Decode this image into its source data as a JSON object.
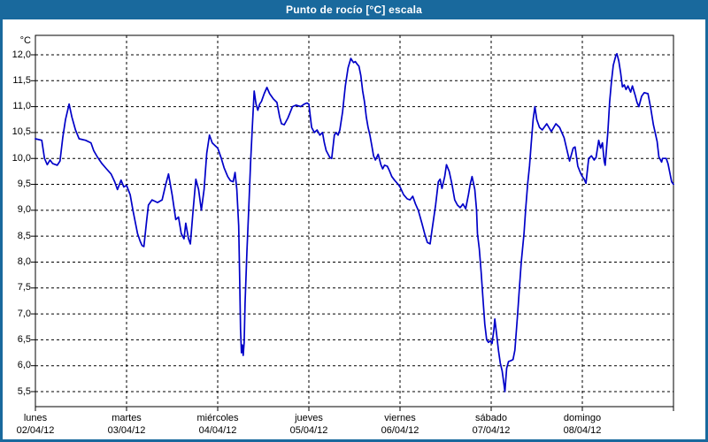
{
  "window": {
    "title": "Punto de rocío [°C] escala"
  },
  "chart_data": {
    "type": "line",
    "title": "Punto de rocío [°C] escala",
    "legend": "none",
    "grid": {
      "horizontal": "dashed",
      "vertical": "dashed"
    },
    "colors": {
      "frame_blue": "#19699d",
      "line": "#0000c8",
      "grid": "#000000",
      "plot_border": "#000000",
      "background": "#ffffff"
    },
    "y_axis": {
      "unit_label": "°C",
      "min": 5.5,
      "max": 12.0,
      "tick_step": 0.5,
      "tick_labels": [
        "12,0",
        "11,5",
        "11,0",
        "10,5",
        "10,0",
        "9,5",
        "9,0",
        "8,5",
        "8,0",
        "7,5",
        "7,0",
        "6,5",
        "6,0",
        "5,5"
      ]
    },
    "x_axis": {
      "unit": "days",
      "days": [
        {
          "name": "lunes",
          "date": "02/04/12"
        },
        {
          "name": "martes",
          "date": "03/04/12"
        },
        {
          "name": "miércoles",
          "date": "04/04/12"
        },
        {
          "name": "jueves",
          "date": "05/04/12"
        },
        {
          "name": "viernes",
          "date": "06/04/12"
        },
        {
          "name": "sábado",
          "date": "07/04/12"
        },
        {
          "name": "domingo",
          "date": "08/04/12"
        }
      ]
    },
    "series": [
      {
        "name": "Punto de rocío [°C]",
        "color": "#0000c8",
        "points": [
          [
            0,
            10.38
          ],
          [
            0.07,
            10.35
          ],
          [
            0.1,
            10.0
          ],
          [
            0.13,
            9.88
          ],
          [
            0.16,
            9.97
          ],
          [
            0.19,
            9.9
          ],
          [
            0.24,
            9.87
          ],
          [
            0.27,
            9.95
          ],
          [
            0.3,
            10.4
          ],
          [
            0.33,
            10.75
          ],
          [
            0.37,
            11.05
          ],
          [
            0.4,
            10.8
          ],
          [
            0.44,
            10.55
          ],
          [
            0.48,
            10.38
          ],
          [
            0.55,
            10.35
          ],
          [
            0.61,
            10.3
          ],
          [
            0.64,
            10.15
          ],
          [
            0.68,
            10.03
          ],
          [
            0.73,
            9.9
          ],
          [
            0.78,
            9.8
          ],
          [
            0.83,
            9.7
          ],
          [
            0.87,
            9.55
          ],
          [
            0.9,
            9.4
          ],
          [
            0.94,
            9.58
          ],
          [
            0.97,
            9.45
          ],
          [
            1.0,
            9.48
          ],
          [
            1.04,
            9.3
          ],
          [
            1.07,
            9.0
          ],
          [
            1.12,
            8.55
          ],
          [
            1.15,
            8.4
          ],
          [
            1.17,
            8.32
          ],
          [
            1.19,
            8.3
          ],
          [
            1.22,
            8.8
          ],
          [
            1.24,
            9.1
          ],
          [
            1.28,
            9.2
          ],
          [
            1.34,
            9.15
          ],
          [
            1.39,
            9.2
          ],
          [
            1.43,
            9.5
          ],
          [
            1.46,
            9.7
          ],
          [
            1.5,
            9.3
          ],
          [
            1.54,
            8.82
          ],
          [
            1.57,
            8.87
          ],
          [
            1.6,
            8.55
          ],
          [
            1.63,
            8.45
          ],
          [
            1.65,
            8.75
          ],
          [
            1.68,
            8.45
          ],
          [
            1.7,
            8.35
          ],
          [
            1.73,
            9.0
          ],
          [
            1.76,
            9.6
          ],
          [
            1.79,
            9.4
          ],
          [
            1.82,
            9.0
          ],
          [
            1.85,
            9.4
          ],
          [
            1.88,
            10.1
          ],
          [
            1.91,
            10.45
          ],
          [
            1.94,
            10.3
          ],
          [
            1.97,
            10.25
          ],
          [
            2.0,
            10.2
          ],
          [
            2.04,
            10.0
          ],
          [
            2.07,
            9.82
          ],
          [
            2.11,
            9.65
          ],
          [
            2.14,
            9.57
          ],
          [
            2.17,
            9.55
          ],
          [
            2.19,
            9.73
          ],
          [
            2.21,
            9.4
          ],
          [
            2.23,
            8.7
          ],
          [
            2.24,
            7.8
          ],
          [
            2.25,
            6.7
          ],
          [
            2.26,
            6.25
          ],
          [
            2.27,
            6.4
          ],
          [
            2.28,
            6.2
          ],
          [
            2.29,
            6.45
          ],
          [
            2.3,
            7.2
          ],
          [
            2.32,
            8.2
          ],
          [
            2.34,
            9.0
          ],
          [
            2.36,
            9.9
          ],
          [
            2.38,
            10.6
          ],
          [
            2.4,
            11.3
          ],
          [
            2.42,
            11.05
          ],
          [
            2.44,
            10.93
          ],
          [
            2.46,
            11.05
          ],
          [
            2.48,
            11.1
          ],
          [
            2.51,
            11.25
          ],
          [
            2.54,
            11.37
          ],
          [
            2.57,
            11.25
          ],
          [
            2.61,
            11.15
          ],
          [
            2.65,
            11.08
          ],
          [
            2.68,
            10.8
          ],
          [
            2.7,
            10.67
          ],
          [
            2.73,
            10.65
          ],
          [
            2.77,
            10.78
          ],
          [
            2.82,
            11.0
          ],
          [
            2.86,
            11.03
          ],
          [
            2.91,
            11.0
          ],
          [
            2.95,
            11.05
          ],
          [
            2.98,
            11.07
          ],
          [
            3.0,
            11.05
          ],
          [
            3.03,
            10.6
          ],
          [
            3.06,
            10.5
          ],
          [
            3.09,
            10.55
          ],
          [
            3.12,
            10.45
          ],
          [
            3.15,
            10.5
          ],
          [
            3.17,
            10.3
          ],
          [
            3.19,
            10.15
          ],
          [
            3.23,
            10.02
          ],
          [
            3.25,
            10.0
          ],
          [
            3.28,
            10.45
          ],
          [
            3.3,
            10.5
          ],
          [
            3.32,
            10.45
          ],
          [
            3.34,
            10.55
          ],
          [
            3.37,
            10.9
          ],
          [
            3.4,
            11.4
          ],
          [
            3.43,
            11.75
          ],
          [
            3.46,
            11.93
          ],
          [
            3.49,
            11.85
          ],
          [
            3.51,
            11.87
          ],
          [
            3.53,
            11.82
          ],
          [
            3.55,
            11.78
          ],
          [
            3.57,
            11.6
          ],
          [
            3.59,
            11.3
          ],
          [
            3.61,
            11.1
          ],
          [
            3.63,
            10.8
          ],
          [
            3.65,
            10.6
          ],
          [
            3.67,
            10.45
          ],
          [
            3.69,
            10.25
          ],
          [
            3.71,
            10.05
          ],
          [
            3.73,
            9.97
          ],
          [
            3.76,
            10.08
          ],
          [
            3.79,
            9.88
          ],
          [
            3.81,
            9.8
          ],
          [
            3.83,
            9.87
          ],
          [
            3.86,
            9.85
          ],
          [
            3.88,
            9.78
          ],
          [
            3.91,
            9.65
          ],
          [
            3.94,
            9.58
          ],
          [
            3.98,
            9.5
          ],
          [
            4.0,
            9.45
          ],
          [
            4.04,
            9.3
          ],
          [
            4.08,
            9.22
          ],
          [
            4.11,
            9.2
          ],
          [
            4.14,
            9.27
          ],
          [
            4.17,
            9.12
          ],
          [
            4.2,
            9.0
          ],
          [
            4.24,
            8.75
          ],
          [
            4.27,
            8.55
          ],
          [
            4.3,
            8.38
          ],
          [
            4.33,
            8.35
          ],
          [
            4.35,
            8.6
          ],
          [
            4.39,
            9.1
          ],
          [
            4.42,
            9.55
          ],
          [
            4.44,
            9.6
          ],
          [
            4.46,
            9.42
          ],
          [
            4.49,
            9.65
          ],
          [
            4.51,
            9.88
          ],
          [
            4.54,
            9.75
          ],
          [
            4.57,
            9.5
          ],
          [
            4.6,
            9.2
          ],
          [
            4.63,
            9.1
          ],
          [
            4.66,
            9.05
          ],
          [
            4.69,
            9.12
          ],
          [
            4.72,
            9.03
          ],
          [
            4.75,
            9.3
          ],
          [
            4.77,
            9.5
          ],
          [
            4.79,
            9.65
          ],
          [
            4.82,
            9.4
          ],
          [
            4.84,
            9.0
          ],
          [
            4.85,
            8.55
          ],
          [
            4.87,
            8.25
          ],
          [
            4.89,
            7.8
          ],
          [
            4.91,
            7.3
          ],
          [
            4.93,
            6.8
          ],
          [
            4.95,
            6.5
          ],
          [
            4.97,
            6.45
          ],
          [
            4.99,
            6.48
          ],
          [
            5.01,
            6.43
          ],
          [
            5.03,
            6.7
          ],
          [
            5.04,
            6.9
          ],
          [
            5.06,
            6.6
          ],
          [
            5.08,
            6.3
          ],
          [
            5.1,
            6.05
          ],
          [
            5.12,
            5.9
          ],
          [
            5.14,
            5.65
          ],
          [
            5.15,
            5.5
          ],
          [
            5.17,
            5.95
          ],
          [
            5.19,
            6.08
          ],
          [
            5.22,
            6.1
          ],
          [
            5.24,
            6.12
          ],
          [
            5.26,
            6.3
          ],
          [
            5.29,
            7.0
          ],
          [
            5.31,
            7.5
          ],
          [
            5.33,
            8.0
          ],
          [
            5.36,
            8.55
          ],
          [
            5.38,
            9.05
          ],
          [
            5.4,
            9.5
          ],
          [
            5.42,
            9.85
          ],
          [
            5.44,
            10.3
          ],
          [
            5.46,
            10.75
          ],
          [
            5.48,
            11.0
          ],
          [
            5.5,
            10.75
          ],
          [
            5.53,
            10.6
          ],
          [
            5.56,
            10.55
          ],
          [
            5.61,
            10.67
          ],
          [
            5.66,
            10.52
          ],
          [
            5.71,
            10.67
          ],
          [
            5.75,
            10.6
          ],
          [
            5.8,
            10.4
          ],
          [
            5.84,
            10.1
          ],
          [
            5.86,
            9.95
          ],
          [
            5.9,
            10.2
          ],
          [
            5.92,
            10.22
          ],
          [
            5.95,
            9.85
          ],
          [
            5.98,
            9.72
          ],
          [
            6.0,
            9.65
          ],
          [
            6.02,
            9.6
          ],
          [
            6.04,
            9.52
          ],
          [
            6.07,
            10.0
          ],
          [
            6.1,
            10.05
          ],
          [
            6.13,
            9.97
          ],
          [
            6.15,
            10.02
          ],
          [
            6.18,
            10.35
          ],
          [
            6.2,
            10.2
          ],
          [
            6.22,
            10.3
          ],
          [
            6.24,
            9.95
          ],
          [
            6.25,
            9.87
          ],
          [
            6.28,
            10.5
          ],
          [
            6.3,
            11.1
          ],
          [
            6.32,
            11.5
          ],
          [
            6.34,
            11.8
          ],
          [
            6.37,
            12.0
          ],
          [
            6.38,
            12.02
          ],
          [
            6.4,
            11.88
          ],
          [
            6.42,
            11.65
          ],
          [
            6.44,
            11.38
          ],
          [
            6.46,
            11.42
          ],
          [
            6.48,
            11.33
          ],
          [
            6.5,
            11.4
          ],
          [
            6.53,
            11.28
          ],
          [
            6.55,
            11.4
          ],
          [
            6.58,
            11.22
          ],
          [
            6.6,
            11.08
          ],
          [
            6.62,
            11.0
          ],
          [
            6.65,
            11.2
          ],
          [
            6.68,
            11.27
          ],
          [
            6.72,
            11.25
          ],
          [
            6.75,
            10.97
          ],
          [
            6.78,
            10.65
          ],
          [
            6.82,
            10.33
          ],
          [
            6.84,
            10.03
          ],
          [
            6.87,
            9.93
          ],
          [
            6.88,
            10.0
          ],
          [
            6.92,
            10.0
          ],
          [
            6.94,
            9.9
          ],
          [
            6.96,
            9.72
          ],
          [
            6.98,
            9.55
          ],
          [
            7.0,
            9.5
          ]
        ]
      }
    ]
  }
}
